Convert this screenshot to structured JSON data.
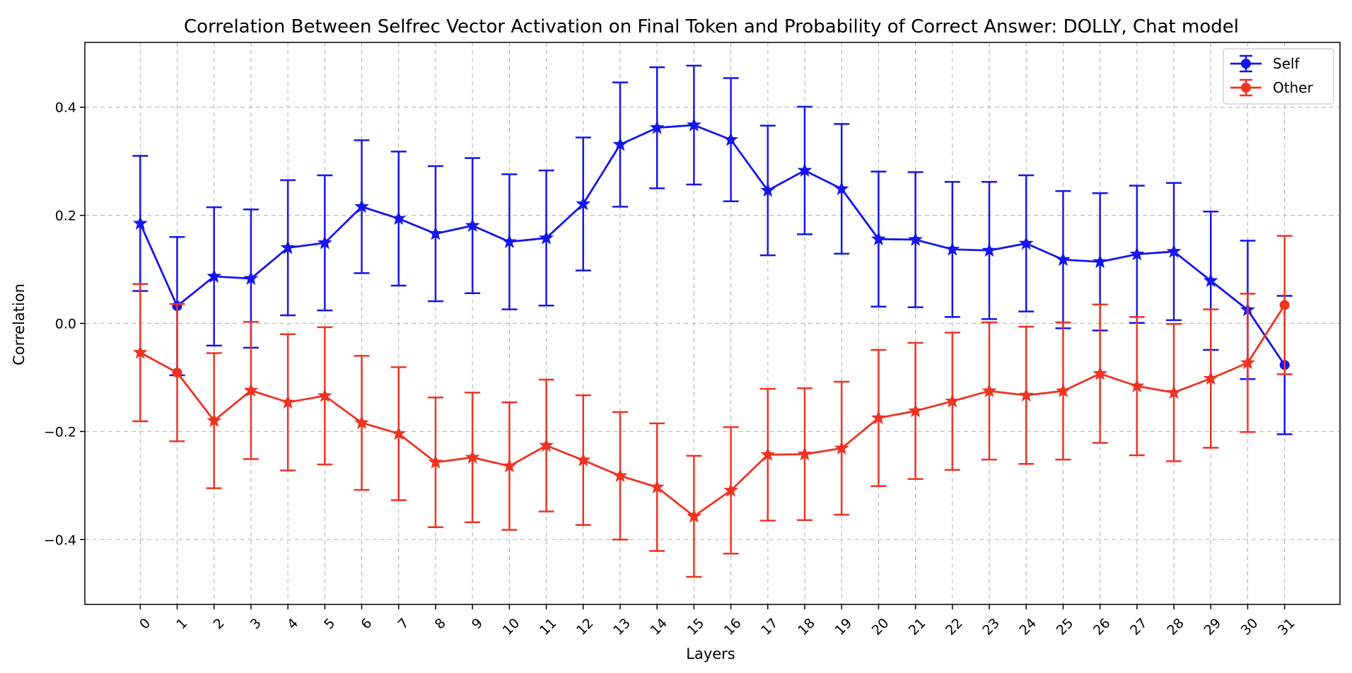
{
  "chart_data": {
    "type": "line",
    "title": "Correlation Between Selfrec Vector Activation on Final Token and Probability of Correct Answer: DOLLY, Chat model",
    "xlabel": "Layers",
    "ylabel": "Correlation",
    "x": [
      0,
      1,
      2,
      3,
      4,
      5,
      6,
      7,
      8,
      9,
      10,
      11,
      12,
      13,
      14,
      15,
      16,
      17,
      18,
      19,
      20,
      21,
      22,
      23,
      24,
      25,
      26,
      27,
      28,
      29,
      30,
      31
    ],
    "xlim": [
      -1.5,
      32.5
    ],
    "ylim": [
      -0.52,
      0.52
    ],
    "yticks": [
      -0.4,
      -0.2,
      0.0,
      0.2,
      0.4
    ],
    "ytick_labels": [
      "−0.4",
      "−0.2",
      "0.0",
      "0.2",
      "0.4"
    ],
    "grid": true,
    "legend_position": "top-right",
    "series": [
      {
        "name": "Self",
        "color": "#1515ee",
        "values": [
          0.185,
          0.032,
          0.087,
          0.083,
          0.14,
          0.149,
          0.216,
          0.194,
          0.166,
          0.181,
          0.151,
          0.158,
          0.221,
          0.331,
          0.362,
          0.367,
          0.34,
          0.246,
          0.283,
          0.249,
          0.156,
          0.155,
          0.137,
          0.135,
          0.148,
          0.118,
          0.114,
          0.128,
          0.133,
          0.079,
          0.025,
          -0.077
        ],
        "error": [
          0.125,
          0.128,
          0.128,
          0.128,
          0.125,
          0.125,
          0.123,
          0.124,
          0.125,
          0.125,
          0.125,
          0.125,
          0.123,
          0.115,
          0.112,
          0.11,
          0.114,
          0.12,
          0.118,
          0.12,
          0.125,
          0.125,
          0.125,
          0.127,
          0.126,
          0.127,
          0.127,
          0.127,
          0.127,
          0.128,
          0.128,
          0.128
        ]
      },
      {
        "name": "Other",
        "color": "#ee3322",
        "values": [
          -0.054,
          -0.091,
          -0.18,
          -0.124,
          -0.146,
          -0.134,
          -0.184,
          -0.204,
          -0.257,
          -0.248,
          -0.264,
          -0.226,
          -0.253,
          -0.282,
          -0.303,
          -0.357,
          -0.309,
          -0.243,
          -0.242,
          -0.231,
          -0.175,
          -0.162,
          -0.144,
          -0.125,
          -0.133,
          -0.125,
          -0.093,
          -0.116,
          -0.128,
          -0.102,
          -0.073,
          0.034
        ],
        "error": [
          0.127,
          0.127,
          0.125,
          0.127,
          0.126,
          0.127,
          0.124,
          0.123,
          0.12,
          0.12,
          0.118,
          0.122,
          0.12,
          0.118,
          0.118,
          0.112,
          0.117,
          0.122,
          0.122,
          0.123,
          0.126,
          0.126,
          0.127,
          0.127,
          0.127,
          0.127,
          0.128,
          0.128,
          0.127,
          0.128,
          0.128,
          0.128
        ]
      }
    ]
  }
}
